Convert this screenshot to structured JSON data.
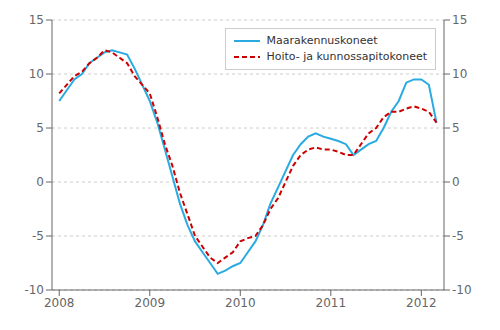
{
  "chart_data": {
    "type": "line",
    "x": [
      2008.0,
      2008.083,
      2008.167,
      2008.25,
      2008.333,
      2008.417,
      2008.5,
      2008.583,
      2008.667,
      2008.75,
      2008.833,
      2008.917,
      2009.0,
      2009.083,
      2009.167,
      2009.25,
      2009.333,
      2009.417,
      2009.5,
      2009.583,
      2009.667,
      2009.75,
      2009.833,
      2009.917,
      2010.0,
      2010.083,
      2010.167,
      2010.25,
      2010.333,
      2010.417,
      2010.5,
      2010.583,
      2010.667,
      2010.75,
      2010.833,
      2010.917,
      2011.0,
      2011.083,
      2011.167,
      2011.25,
      2011.333,
      2011.417,
      2011.5,
      2011.583,
      2011.667,
      2011.75,
      2011.833,
      2011.917,
      2012.0,
      2012.083,
      2012.167
    ],
    "series": [
      {
        "name": "Maarakennuskoneet",
        "color": "#29ABE2",
        "line_style": "solid",
        "values": [
          7.5,
          8.5,
          9.5,
          10.0,
          11.0,
          11.5,
          12.0,
          12.2,
          12.0,
          11.8,
          10.5,
          9.0,
          7.5,
          5.5,
          3.0,
          0.5,
          -2.0,
          -4.0,
          -5.5,
          -6.5,
          -7.5,
          -8.5,
          -8.2,
          -7.8,
          -7.5,
          -6.5,
          -5.5,
          -4.0,
          -2.0,
          -0.5,
          1.0,
          2.5,
          3.5,
          4.2,
          4.5,
          4.2,
          4.0,
          3.8,
          3.5,
          2.5,
          3.0,
          3.5,
          3.8,
          5.0,
          6.5,
          7.5,
          9.2,
          9.5,
          9.5,
          9.0,
          5.5
        ]
      },
      {
        "name": "Hoito- ja kunnossapitokoneet",
        "color": "#CC0000",
        "line_style": "dashed",
        "values": [
          8.2,
          9.0,
          9.8,
          10.2,
          11.0,
          11.5,
          12.2,
          12.0,
          11.5,
          11.0,
          9.8,
          9.0,
          8.2,
          6.0,
          3.5,
          1.5,
          -1.0,
          -3.0,
          -5.0,
          -6.0,
          -7.0,
          -7.5,
          -7.0,
          -6.5,
          -5.5,
          -5.2,
          -5.0,
          -4.0,
          -2.5,
          -1.5,
          0.0,
          1.5,
          2.5,
          3.0,
          3.2,
          3.0,
          3.0,
          2.8,
          2.5,
          2.5,
          3.5,
          4.5,
          5.0,
          6.0,
          6.5,
          6.5,
          6.8,
          7.0,
          6.8,
          6.5,
          5.5
        ]
      }
    ],
    "xlim": [
      2007.92,
      2012.25
    ],
    "xticks": [
      2008,
      2009,
      2010,
      2011,
      2012
    ],
    "ylim": [
      -10,
      15
    ],
    "yticks": [
      -10,
      -5,
      0,
      5,
      10,
      15
    ],
    "y2lim": [
      -10,
      15
    ],
    "y2ticks": [
      -10,
      -5,
      0,
      5,
      10,
      15
    ],
    "grid": "y",
    "legend": "upper right"
  }
}
